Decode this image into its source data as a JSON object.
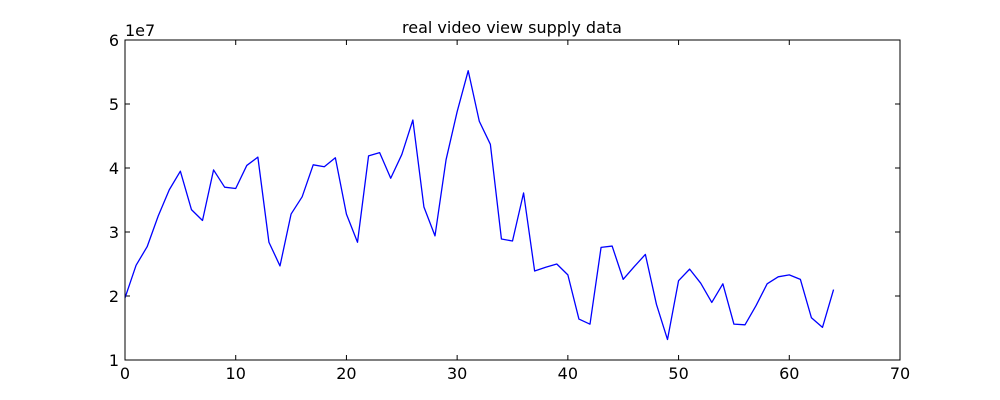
{
  "chart_data": {
    "type": "line",
    "title": "real video view supply data",
    "xlabel": "",
    "ylabel": "",
    "y_scale_label": "1e7",
    "xlim": [
      0,
      70
    ],
    "ylim": [
      1,
      6
    ],
    "x_ticks": [
      0,
      10,
      20,
      30,
      40,
      50,
      60,
      70
    ],
    "y_ticks": [
      1,
      2,
      3,
      4,
      5,
      6
    ],
    "x_tick_labels": [
      "0",
      "10",
      "20",
      "30",
      "40",
      "50",
      "60",
      "70"
    ],
    "y_tick_labels": [
      "1",
      "2",
      "3",
      "4",
      "5",
      "6"
    ],
    "grid": false,
    "line_color": "#0000ff",
    "series": [
      {
        "x": [
          0,
          1,
          2,
          3,
          4,
          5,
          6,
          7,
          8,
          9,
          10,
          11,
          12,
          13,
          14,
          15,
          16,
          17,
          18,
          19,
          20,
          21,
          22,
          23,
          24,
          25,
          26,
          27,
          28,
          29,
          30,
          31,
          32,
          33,
          34,
          35,
          36,
          37,
          38,
          39,
          40,
          41,
          42,
          43,
          44,
          45,
          46,
          47,
          48,
          49,
          50,
          51,
          52,
          53,
          54,
          55,
          56,
          57,
          58,
          59,
          60,
          61,
          62,
          63,
          64
        ],
        "values": [
          1.97,
          2.48,
          2.77,
          3.25,
          3.66,
          3.95,
          3.35,
          3.18,
          3.97,
          3.7,
          3.68,
          4.04,
          4.17,
          2.84,
          2.47,
          3.28,
          3.55,
          4.05,
          4.02,
          4.16,
          3.28,
          2.84,
          4.19,
          4.24,
          3.84,
          4.21,
          4.75,
          3.39,
          2.94,
          4.13,
          4.88,
          5.52,
          4.73,
          4.37,
          2.89,
          2.86,
          3.61,
          2.39,
          2.45,
          2.5,
          2.33,
          1.64,
          1.56,
          2.76,
          2.78,
          2.26,
          2.46,
          2.65,
          1.87,
          1.32,
          2.24,
          2.42,
          2.2,
          1.9,
          2.19,
          1.56,
          1.55,
          1.85,
          2.19,
          2.3,
          2.33,
          2.26,
          1.66,
          1.51,
          2.1
        ]
      }
    ]
  }
}
